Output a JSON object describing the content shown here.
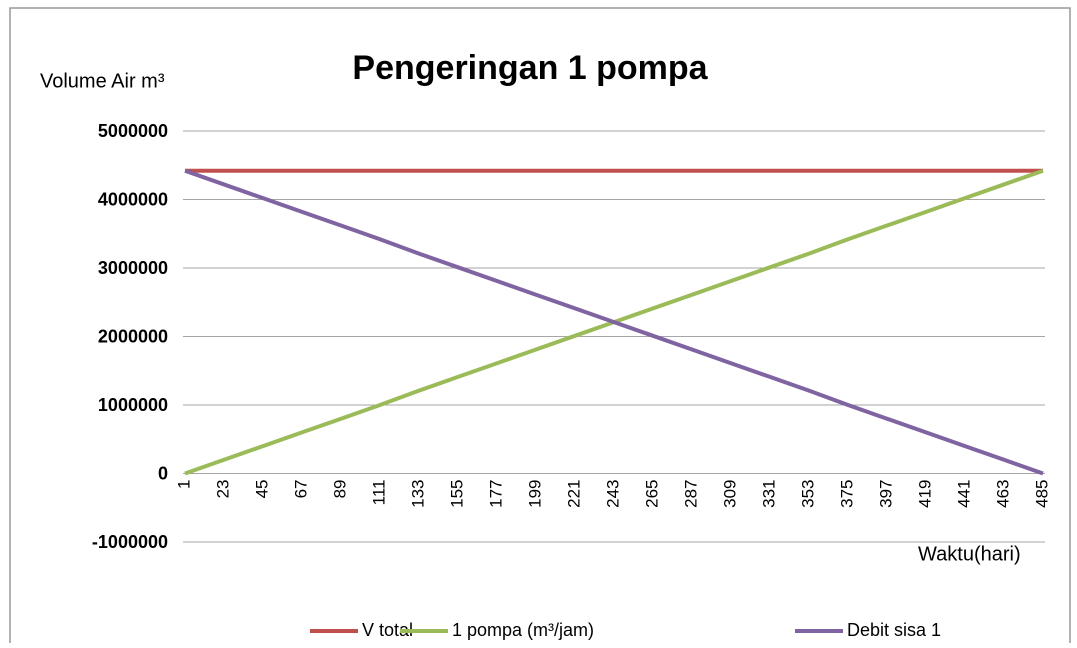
{
  "chart_data": {
    "type": "line",
    "title": "Pengeringan 1 pompa",
    "y_label": "Volume Air m³",
    "x_label": "Waktu(hari)",
    "categories": [
      "1",
      "23",
      "45",
      "67",
      "89",
      "111",
      "133",
      "155",
      "177",
      "199",
      "221",
      "243",
      "265",
      "287",
      "309",
      "331",
      "353",
      "375",
      "397",
      "419",
      "441",
      "463",
      "485"
    ],
    "series": [
      {
        "name": "V total",
        "color": "#c0504d",
        "values": [
          4420000,
          4420000,
          4420000,
          4420000,
          4420000,
          4420000,
          4420000,
          4420000,
          4420000,
          4420000,
          4420000,
          4420000,
          4420000,
          4420000,
          4420000,
          4420000,
          4420000,
          4420000,
          4420000,
          4420000,
          4420000,
          4420000,
          4420000
        ]
      },
      {
        "name": "1 pompa (m³/jam)",
        "color": "#9bbb59",
        "values": [
          0,
          200000,
          400000,
          600000,
          800000,
          1000000,
          1210000,
          1410000,
          1610000,
          1810000,
          2010000,
          2210000,
          2410000,
          2610000,
          2810000,
          3010000,
          3210000,
          3420000,
          3620000,
          3820000,
          4020000,
          4220000,
          4420000
        ]
      },
      {
        "name": "Debit sisa 1",
        "color": "#8064a2",
        "values": [
          4420000,
          4220000,
          4020000,
          3820000,
          3620000,
          3420000,
          3210000,
          3010000,
          2810000,
          2610000,
          2410000,
          2210000,
          2010000,
          1810000,
          1610000,
          1410000,
          1210000,
          1000000,
          800000,
          600000,
          400000,
          200000,
          0
        ]
      }
    ],
    "ylim": [
      -1000000,
      5000000
    ],
    "yticks": [
      -1000000,
      0,
      1000000,
      2000000,
      3000000,
      4000000,
      5000000
    ],
    "grid": true,
    "legend": "bottom"
  }
}
